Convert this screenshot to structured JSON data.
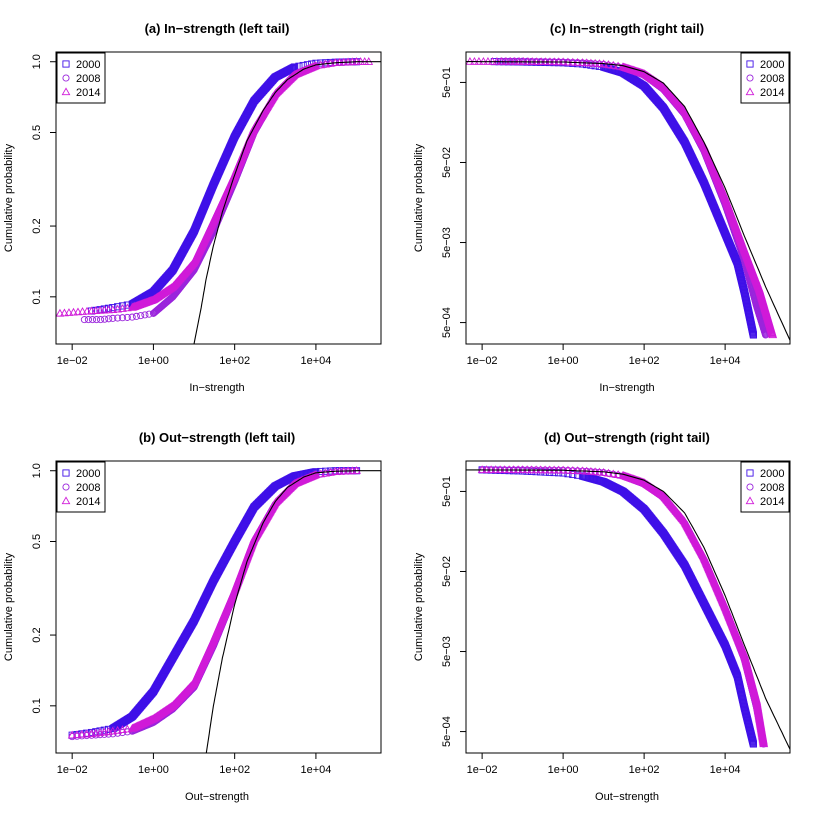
{
  "colors": {
    "2000": "#3f10e8",
    "2008": "#9a24dc",
    "2014": "#d01ad8",
    "fit_line": "#000000"
  },
  "chart_data": [
    {
      "type": "scatter",
      "title": "(a) In−strength (left tail)",
      "xlabel": "In−strength",
      "ylabel": "Cumulative probability",
      "x_scale": "log",
      "y_scale": "log",
      "xlim": [
        0.004,
        400000
      ],
      "ylim": [
        0.063,
        1.1
      ],
      "xticks": [
        0.01,
        1,
        100,
        10000
      ],
      "xtick_labels": [
        "1e−02",
        "1e+00",
        "1e+02",
        "1e+04"
      ],
      "yticks": [
        0.1,
        0.2,
        0.5,
        1.0
      ],
      "ytick_labels": [
        "0.1",
        "0.2",
        "0.5",
        "1.0"
      ],
      "legend_position": "top-left",
      "series": [
        {
          "name": "2000",
          "marker": "square",
          "x": [
            0.03,
            0.1,
            0.3,
            1,
            3,
            10,
            30,
            100,
            300,
            1000,
            3000,
            10000,
            30000,
            100000
          ],
          "y": [
            0.087,
            0.09,
            0.093,
            0.105,
            0.13,
            0.19,
            0.3,
            0.48,
            0.68,
            0.86,
            0.95,
            0.985,
            0.995,
            1.0
          ]
        },
        {
          "name": "2008",
          "marker": "circle",
          "x": [
            0.02,
            0.05,
            0.1,
            0.3,
            1,
            3,
            10,
            30,
            100,
            300,
            1000,
            3000,
            10000,
            30000,
            100000
          ],
          "y": [
            0.08,
            0.08,
            0.081,
            0.082,
            0.085,
            0.1,
            0.13,
            0.19,
            0.31,
            0.5,
            0.72,
            0.88,
            0.96,
            0.99,
            1.0
          ]
        },
        {
          "name": "2014",
          "marker": "triangle",
          "x": [
            0.005,
            0.03,
            0.1,
            0.3,
            1,
            3,
            10,
            30,
            100,
            300,
            1000,
            3000,
            10000,
            30000,
            100000,
            200000
          ],
          "y": [
            0.085,
            0.087,
            0.088,
            0.09,
            0.097,
            0.11,
            0.14,
            0.21,
            0.33,
            0.52,
            0.73,
            0.88,
            0.96,
            0.99,
            1.0,
            1.0
          ]
        },
        {
          "name": "",
          "style": "line",
          "x": [
            10,
            15,
            20,
            30,
            50,
            100,
            200,
            500,
            1000,
            2000,
            5000,
            10000,
            30000,
            100000,
            400000
          ],
          "y": [
            0.063,
            0.09,
            0.12,
            0.165,
            0.23,
            0.33,
            0.46,
            0.62,
            0.74,
            0.84,
            0.93,
            0.97,
            0.99,
            1.0,
            1.0
          ]
        }
      ]
    },
    {
      "type": "scatter",
      "title": "(c) In−strength (right tail)",
      "xlabel": "In−strength",
      "ylabel": "Cumulative probability",
      "x_scale": "log",
      "y_scale": "log",
      "xlim": [
        0.004,
        400000
      ],
      "ylim": [
        0.00027,
        1.2
      ],
      "xticks": [
        0.01,
        1,
        100,
        10000
      ],
      "xtick_labels": [
        "1e−02",
        "1e+00",
        "1e+02",
        "1e+04"
      ],
      "yticks": [
        0.0005,
        0.005,
        0.05,
        0.5
      ],
      "ytick_labels": [
        "5e−04",
        "5e−03",
        "5e−02",
        "5e−01"
      ],
      "legend_position": "top-right",
      "series": [
        {
          "name": "2000",
          "marker": "square",
          "x": [
            0.02,
            0.1,
            1,
            3,
            10,
            30,
            100,
            300,
            1000,
            3000,
            10000,
            20000,
            30000,
            50000
          ],
          "y": [
            0.91,
            0.9,
            0.88,
            0.85,
            0.78,
            0.66,
            0.45,
            0.24,
            0.09,
            0.028,
            0.0065,
            0.0028,
            0.0012,
            0.00035
          ]
        },
        {
          "name": "2008",
          "marker": "circle",
          "x": [
            0.03,
            0.1,
            1,
            3,
            10,
            30,
            100,
            300,
            1000,
            3000,
            10000,
            30000,
            60000,
            100000
          ],
          "y": [
            0.92,
            0.92,
            0.9,
            0.88,
            0.84,
            0.77,
            0.62,
            0.41,
            0.2,
            0.07,
            0.015,
            0.003,
            0.0008,
            0.00035
          ]
        },
        {
          "name": "2014",
          "marker": "triangle",
          "x": [
            0.005,
            0.05,
            1,
            3,
            10,
            30,
            100,
            300,
            1000,
            3000,
            10000,
            30000,
            70000,
            150000
          ],
          "y": [
            0.91,
            0.91,
            0.9,
            0.88,
            0.85,
            0.78,
            0.64,
            0.44,
            0.22,
            0.08,
            0.018,
            0.004,
            0.0013,
            0.00035
          ]
        },
        {
          "name": "",
          "style": "line",
          "x": [
            0.004,
            1,
            10,
            30,
            100,
            300,
            1000,
            3000,
            10000,
            30000,
            100000,
            400000
          ],
          "y": [
            0.91,
            0.9,
            0.86,
            0.81,
            0.68,
            0.49,
            0.25,
            0.09,
            0.024,
            0.006,
            0.0014,
            0.0003
          ]
        }
      ]
    },
    {
      "type": "scatter",
      "title": "(b) Out−strength (left tail)",
      "xlabel": "Out−strength",
      "ylabel": "Cumulative probability",
      "x_scale": "log",
      "y_scale": "log",
      "xlim": [
        0.004,
        400000
      ],
      "ylim": [
        0.063,
        1.1
      ],
      "xticks": [
        0.01,
        1,
        100,
        10000
      ],
      "xtick_labels": [
        "1e−02",
        "1e+00",
        "1e+02",
        "1e+04"
      ],
      "yticks": [
        0.1,
        0.2,
        0.5,
        1.0
      ],
      "ytick_labels": [
        "0.1",
        "0.2",
        "0.5",
        "1.0"
      ],
      "legend_position": "top-left",
      "series": [
        {
          "name": "2000",
          "marker": "square",
          "x": [
            0.01,
            0.03,
            0.1,
            0.3,
            1,
            3,
            10,
            30,
            100,
            300,
            1000,
            3000,
            10000,
            30000,
            100000
          ],
          "y": [
            0.075,
            0.077,
            0.08,
            0.09,
            0.115,
            0.16,
            0.23,
            0.34,
            0.5,
            0.7,
            0.86,
            0.95,
            0.99,
            1.0,
            1.0
          ]
        },
        {
          "name": "2008",
          "marker": "circle",
          "x": [
            0.01,
            0.03,
            0.1,
            0.3,
            1,
            3,
            10,
            30,
            100,
            300,
            1000,
            3000,
            10000,
            30000,
            100000
          ],
          "y": [
            0.074,
            0.075,
            0.076,
            0.078,
            0.085,
            0.097,
            0.12,
            0.18,
            0.3,
            0.5,
            0.72,
            0.88,
            0.96,
            0.99,
            1.0
          ]
        },
        {
          "name": "2014",
          "marker": "triangle",
          "x": [
            0.01,
            0.03,
            0.1,
            0.3,
            1,
            3,
            10,
            30,
            100,
            300,
            1000,
            3000,
            10000,
            30000,
            100000
          ],
          "y": [
            0.075,
            0.076,
            0.078,
            0.08,
            0.088,
            0.1,
            0.125,
            0.19,
            0.31,
            0.51,
            0.73,
            0.88,
            0.96,
            0.99,
            1.0
          ]
        },
        {
          "name": "",
          "style": "line",
          "x": [
            20,
            30,
            50,
            100,
            200,
            500,
            1000,
            2000,
            5000,
            10000,
            30000,
            100000,
            400000
          ],
          "y": [
            0.063,
            0.1,
            0.16,
            0.27,
            0.41,
            0.6,
            0.74,
            0.85,
            0.94,
            0.98,
            0.995,
            1.0,
            1.0
          ]
        }
      ]
    },
    {
      "type": "scatter",
      "title": "(d) Out−strength (right tail)",
      "xlabel": "Out−strength",
      "ylabel": "Cumulative probability",
      "x_scale": "log",
      "y_scale": "log",
      "xlim": [
        0.004,
        400000
      ],
      "ylim": [
        0.00027,
        1.2
      ],
      "xticks": [
        0.01,
        1,
        100,
        10000
      ],
      "xtick_labels": [
        "1e−02",
        "1e+00",
        "1e+02",
        "1e+04"
      ],
      "yticks": [
        0.0005,
        0.005,
        0.05,
        0.5
      ],
      "ytick_labels": [
        "5e−04",
        "5e−03",
        "5e−02",
        "5e−01"
      ],
      "legend_position": "top-right",
      "series": [
        {
          "name": "2000",
          "marker": "square",
          "x": [
            0.01,
            0.1,
            1,
            3,
            10,
            30,
            100,
            300,
            1000,
            3000,
            10000,
            20000,
            30000,
            50000
          ],
          "y": [
            0.93,
            0.9,
            0.85,
            0.78,
            0.66,
            0.5,
            0.3,
            0.15,
            0.06,
            0.02,
            0.006,
            0.0025,
            0.001,
            0.00035
          ]
        },
        {
          "name": "2008",
          "marker": "circle",
          "x": [
            0.01,
            0.1,
            1,
            3,
            10,
            30,
            100,
            300,
            1000,
            3000,
            10000,
            30000,
            60000,
            90000
          ],
          "y": [
            0.93,
            0.93,
            0.92,
            0.9,
            0.86,
            0.78,
            0.62,
            0.42,
            0.2,
            0.07,
            0.017,
            0.004,
            0.001,
            0.00035
          ]
        },
        {
          "name": "2014",
          "marker": "triangle",
          "x": [
            0.01,
            0.1,
            1,
            3,
            10,
            30,
            100,
            300,
            1000,
            3000,
            10000,
            30000,
            60000,
            90000
          ],
          "y": [
            0.93,
            0.93,
            0.92,
            0.9,
            0.86,
            0.79,
            0.64,
            0.44,
            0.21,
            0.075,
            0.018,
            0.0045,
            0.0012,
            0.00035
          ]
        },
        {
          "name": "",
          "style": "line",
          "x": [
            0.004,
            1,
            10,
            30,
            100,
            300,
            1000,
            3000,
            10000,
            30000,
            100000,
            400000
          ],
          "y": [
            0.93,
            0.92,
            0.88,
            0.82,
            0.69,
            0.5,
            0.27,
            0.1,
            0.025,
            0.006,
            0.0013,
            0.0003
          ]
        }
      ]
    }
  ]
}
